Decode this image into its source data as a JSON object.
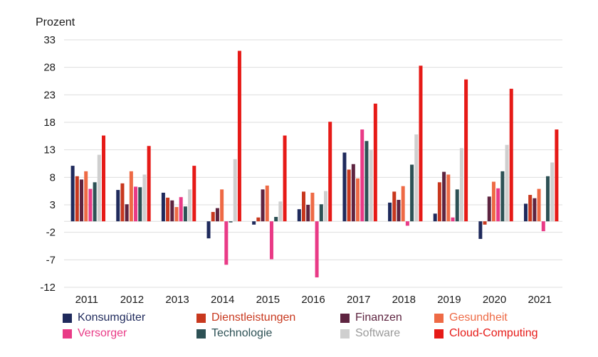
{
  "chart_data": {
    "type": "bar",
    "ylabel": "Prozent",
    "yticks": [
      33,
      28,
      23,
      18,
      13,
      8,
      3,
      -2,
      -7,
      -12
    ],
    "ylim": [
      -12,
      33
    ],
    "grid": "horizontal",
    "legend_placement": "bottom",
    "categories": [
      "2011",
      "2012",
      "2013",
      "2014",
      "2015",
      "2016",
      "2017",
      "2018",
      "2019",
      "2020",
      "2021"
    ],
    "series": [
      {
        "name": "Konsumgüter",
        "color": "#1f2a5c",
        "values": [
          10.1,
          5.7,
          5.2,
          -3.1,
          -0.6,
          2.2,
          12.5,
          3.4,
          1.4,
          -3.2,
          3.2
        ]
      },
      {
        "name": "Dienstleistungen",
        "color": "#c8381e",
        "values": [
          8.2,
          6.9,
          4.3,
          1.7,
          0.7,
          5.4,
          9.4,
          5.4,
          7.1,
          -0.6,
          4.8
        ]
      },
      {
        "name": "Finanzen",
        "color": "#5e2440",
        "values": [
          7.6,
          3.1,
          3.8,
          2.4,
          5.8,
          3.0,
          10.4,
          3.9,
          9.0,
          4.5,
          4.2
        ]
      },
      {
        "name": "Gesundheit",
        "color": "#ee6a45",
        "values": [
          9.1,
          9.1,
          2.6,
          5.8,
          6.5,
          5.2,
          7.8,
          6.4,
          8.5,
          7.2,
          5.9
        ]
      },
      {
        "name": "Versorger",
        "color": "#e93a86",
        "values": [
          5.9,
          6.3,
          4.4,
          -7.9,
          -6.9,
          -10.2,
          16.7,
          -0.8,
          0.7,
          6.0,
          -1.8
        ]
      },
      {
        "name": "Technologie",
        "color": "#2d5155",
        "values": [
          7.1,
          6.2,
          2.7,
          -0.2,
          0.8,
          3.1,
          14.6,
          10.3,
          5.8,
          9.1,
          8.2
        ]
      },
      {
        "name": "Software",
        "color": "#cfcfcf",
        "values": [
          12.1,
          8.5,
          5.8,
          11.3,
          3.6,
          5.5,
          13.0,
          15.8,
          13.3,
          13.9,
          10.7
        ]
      },
      {
        "name": "Cloud-Computing",
        "color": "#e61a17",
        "values": [
          15.6,
          13.7,
          10.1,
          31.0,
          15.6,
          18.1,
          21.4,
          28.3,
          25.8,
          24.1,
          16.7
        ]
      }
    ]
  }
}
